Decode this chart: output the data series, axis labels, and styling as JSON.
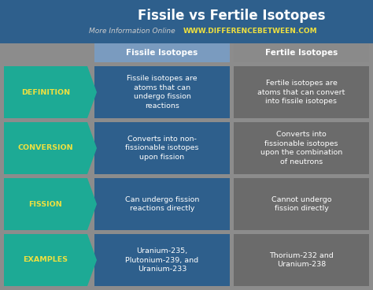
{
  "title": "Fissile vs Fertile Isotopes",
  "subtitle_plain": "More Information Online",
  "subtitle_url": "WWW.DIFFERENCEBETWEEN.COM",
  "col1_header": "Fissile Isotopes",
  "col2_header": "Fertile Isotopes",
  "background_color": "#8C8C8C",
  "header_bg_color": "#2E5F8C",
  "col1_bg_color": "#2E5F8C",
  "col2_bg_color": "#6B6B6B",
  "col_header1_bg": "#7A9BBF",
  "col_header2_bg": "#8A8A8A",
  "arrow_color": "#1DAA95",
  "arrow_text_color": "#EEE040",
  "title_color": "#FFFFFF",
  "subtitle_plain_color": "#CCCCCC",
  "subtitle_url_color": "#EEE040",
  "header_text_color": "#FFFFFF",
  "col1_text_color": "#FFFFFF",
  "col2_text_color": "#FFFFFF",
  "rows": [
    {
      "label": "DEFINITION",
      "col1": "Fissile isotopes are\natoms that can\nundergo fission\nreactions",
      "col2": "Fertile isotopes are\natoms that can convert\ninto fissile isotopes"
    },
    {
      "label": "CONVERSION",
      "col1": "Converts into non-\nfissionable isotopes\nupon fission",
      "col2": "Converts into\nfissionable isotopes\nupon the combination\nof neutrons"
    },
    {
      "label": "FISSION",
      "col1": "Can undergo fission\nreactions directly",
      "col2": "Cannot undergo\nfission directly"
    },
    {
      "label": "EXAMPLES",
      "col1": "Uranium-235,\nPlutonium-239, and\nUranium-233",
      "col2": "Thorium-232 and\nUranium-238"
    }
  ]
}
